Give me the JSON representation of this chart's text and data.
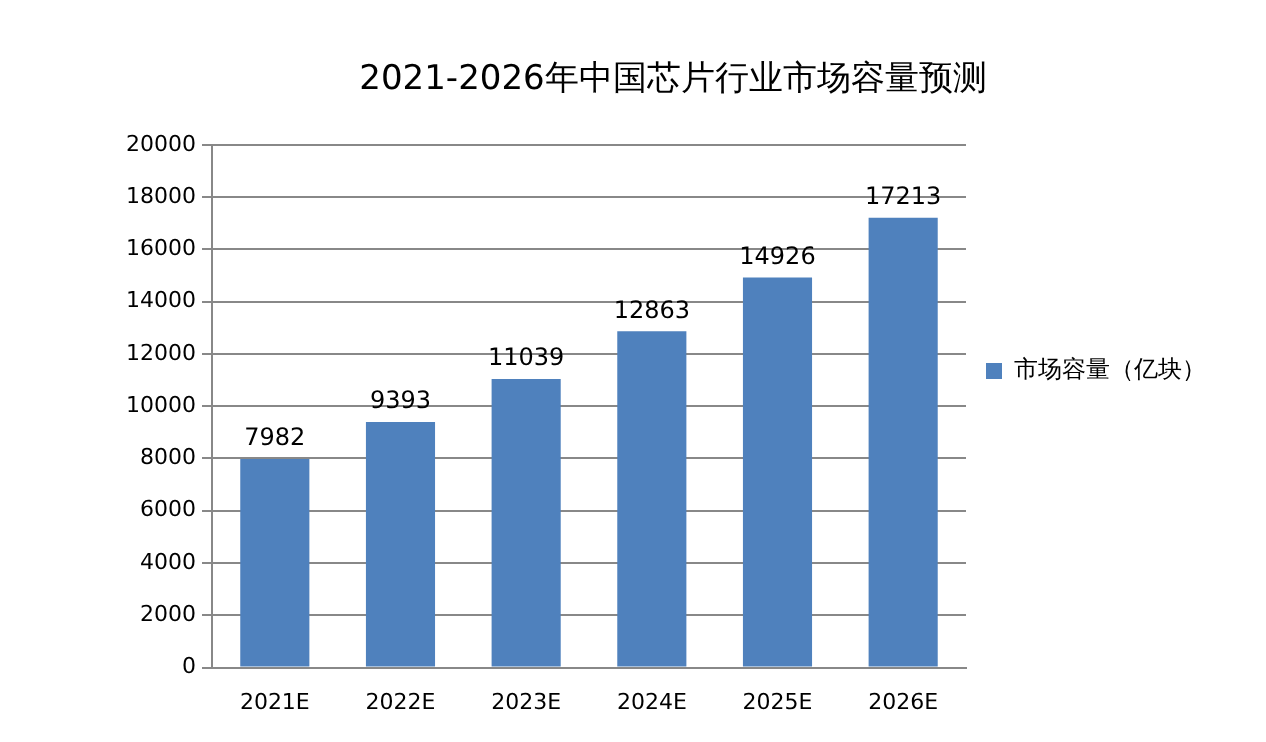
{
  "chart_data": {
    "type": "bar",
    "title": "2021-2026年中国芯片行业市场容量预测",
    "categories": [
      "2021E",
      "2022E",
      "2023E",
      "2024E",
      "2025E",
      "2026E"
    ],
    "series": [
      {
        "name": "市场容量（亿块）",
        "color": "#4f81bd",
        "values": [
          7982,
          9393,
          11039,
          12863,
          14926,
          17213
        ]
      }
    ],
    "ylim": [
      0,
      20000
    ],
    "yticks": [
      0,
      2000,
      4000,
      6000,
      8000,
      10000,
      12000,
      14000,
      16000,
      18000,
      20000
    ],
    "grid": "y",
    "legend": "right",
    "data_labels": true
  }
}
